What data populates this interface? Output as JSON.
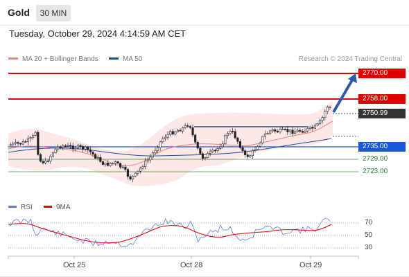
{
  "header": {
    "symbol": "Gold",
    "timeframe": "30 MIN"
  },
  "timestamp": "Tuesday, October 29, 2024 4:14:59 AM CET",
  "legend": {
    "ma20": {
      "label": "MA 20 + Bollinger Bands",
      "color": "#f08080"
    },
    "ma50": {
      "label": "MA 50",
      "color": "#1f4e8c"
    }
  },
  "credit": "Research © 2024 Trading Central",
  "levels": {
    "r2": {
      "label": "2770.00",
      "price": 2770.0,
      "color": "#e00000"
    },
    "r1": {
      "label": "2758.00",
      "price": 2758.0,
      "color": "#e00000"
    },
    "last": {
      "label": "2750.99",
      "price": 2750.99,
      "color": "#333333"
    },
    "pivot": {
      "label": "2735.00",
      "price": 2735.0,
      "color": "#1a56db"
    },
    "s1": {
      "label": "2729.00",
      "price": 2729.0,
      "color": "#2e7d32"
    },
    "s2": {
      "label": "2723.00",
      "price": 2723.0,
      "color": "#2e7d32"
    }
  },
  "rsi_legend": {
    "rsi": {
      "label": "RSI",
      "color": "#5b7bd5"
    },
    "ma9": {
      "label": "9MA",
      "color": "#e00000"
    }
  },
  "rsi_ticks": [
    "70",
    "50",
    "30"
  ],
  "dates": [
    "Oct 25",
    "Oct 28",
    "Oct 29"
  ]
}
